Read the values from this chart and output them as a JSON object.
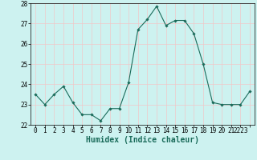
{
  "x": [
    0,
    1,
    2,
    3,
    4,
    5,
    6,
    7,
    8,
    9,
    10,
    11,
    12,
    13,
    14,
    15,
    16,
    17,
    18,
    19,
    20,
    21,
    22,
    23
  ],
  "y": [
    23.5,
    23.0,
    23.5,
    23.9,
    23.1,
    22.5,
    22.5,
    22.2,
    22.8,
    22.8,
    24.1,
    26.7,
    27.2,
    27.85,
    26.9,
    27.15,
    27.15,
    26.5,
    25.0,
    23.1,
    23.0,
    23.0,
    23.0,
    23.65
  ],
  "line_color": "#1a6b5a",
  "marker": "D",
  "marker_size": 1.8,
  "line_width": 0.8,
  "xlabel": "Humidex (Indice chaleur)",
  "xlabel_fontsize": 7.0,
  "xlabel_fontweight": "bold",
  "ylim": [
    22,
    28
  ],
  "xlim": [
    -0.5,
    23.5
  ],
  "yticks": [
    22,
    23,
    24,
    25,
    26,
    27,
    28
  ],
  "xticks": [
    0,
    1,
    2,
    3,
    4,
    5,
    6,
    7,
    8,
    9,
    10,
    11,
    12,
    13,
    14,
    15,
    16,
    17,
    18,
    19,
    20,
    21,
    22,
    23
  ],
  "xtick_labels": [
    "0",
    "1",
    "2",
    "3",
    "4",
    "5",
    "6",
    "7",
    "8",
    "9",
    "10",
    "11",
    "12",
    "13",
    "14",
    "15",
    "16",
    "17",
    "18",
    "19",
    "20",
    "21",
    "2223",
    ""
  ],
  "tick_fontsize": 5.5,
  "background_color": "#cdf2f0",
  "grid_color": "#f0c8c8",
  "grid_linewidth": 0.5
}
